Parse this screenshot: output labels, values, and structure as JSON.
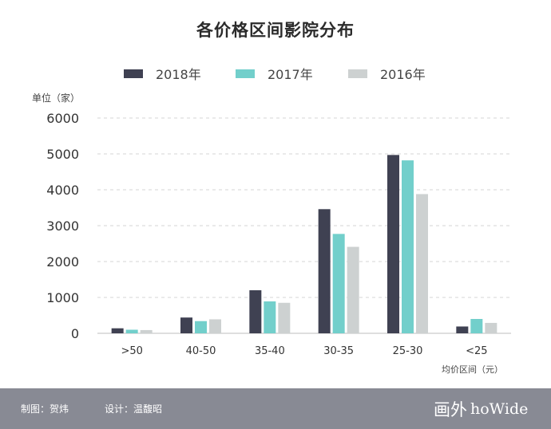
{
  "chart_data": {
    "type": "bar",
    "title": "各价格区间影院分布",
    "ylabel": "单位（家）",
    "xlabel": "均价区间（元）",
    "categories": [
      ">50",
      "40-50",
      "35-40",
      "30-35",
      "25-30",
      "<25"
    ],
    "series": [
      {
        "name": "2018年",
        "color": "#3f4152",
        "values": [
          140,
          440,
          1200,
          3460,
          4970,
          190
        ]
      },
      {
        "name": "2017年",
        "color": "#72cfcb",
        "values": [
          100,
          340,
          890,
          2770,
          4820,
          400
        ]
      },
      {
        "name": "2016年",
        "color": "#cdd1d1",
        "values": [
          90,
          390,
          850,
          2410,
          3880,
          290
        ]
      }
    ],
    "ylim": [
      0,
      6000
    ],
    "yticks": [
      0,
      1000,
      2000,
      3000,
      4000,
      5000,
      6000
    ],
    "grid": true,
    "legend": "top-center"
  },
  "footer": {
    "credit_chart": "制图：贺炜",
    "credit_design": "设计：温馥昭",
    "brand_cn": "画外",
    "brand_en": "hoWide"
  }
}
